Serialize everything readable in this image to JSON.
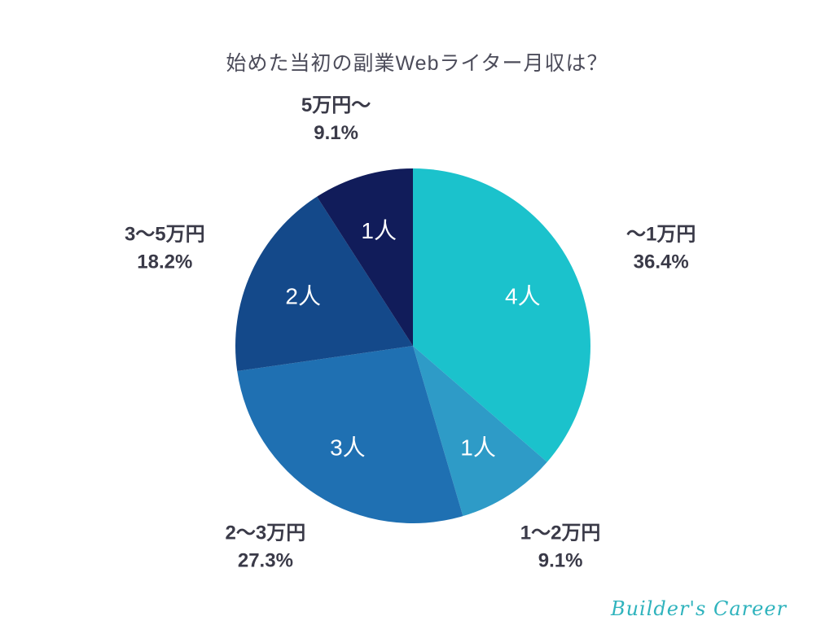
{
  "page": {
    "branding": "Builder's Career"
  },
  "chart_data": {
    "type": "pie",
    "title": "始めた当初の副業Webライター月収は？",
    "direction": "clockwise",
    "start_angle_deg": 0,
    "legend_position": "none",
    "label_color": "#3a3a48",
    "inner_label_color": "#ffffff",
    "segments": [
      {
        "id": "under-1man",
        "label": "～1万円",
        "percent": 36.4,
        "percent_label": "36.4%",
        "count": 4,
        "count_label": "4人",
        "color": "#1bc2cc"
      },
      {
        "id": "1-to-2man",
        "label": "1～2万円",
        "percent": 9.1,
        "percent_label": "9.1%",
        "count": 1,
        "count_label": "1人",
        "color": "#2e9bc7"
      },
      {
        "id": "2-to-3man",
        "label": "2～3万円",
        "percent": 27.3,
        "percent_label": "27.3%",
        "count": 3,
        "count_label": "3人",
        "color": "#1f70b2"
      },
      {
        "id": "3-to-5man",
        "label": "3～5万円",
        "percent": 18.2,
        "percent_label": "18.2%",
        "count": 2,
        "count_label": "2人",
        "color": "#14498a"
      },
      {
        "id": "over-5man",
        "label": "5万円～",
        "percent": 9.1,
        "percent_label": "9.1%",
        "count": 1,
        "count_label": "1人",
        "color": "#111c5a"
      }
    ]
  }
}
